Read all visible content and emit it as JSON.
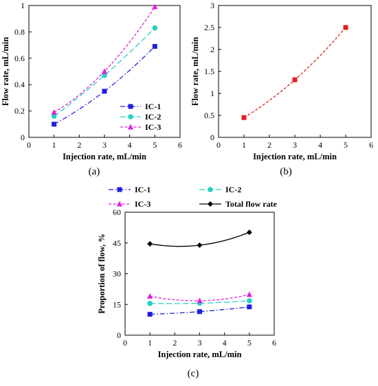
{
  "chart_data": [
    {
      "type": "line",
      "panel_label": "(a)",
      "xlabel": "Injection rate, mL/min",
      "ylabel": "Flow rate, mL/min",
      "xlim": [
        0,
        6
      ],
      "ylim": [
        0,
        1
      ],
      "xticks": [
        "0",
        "1",
        "2",
        "3",
        "4",
        "5",
        "6"
      ],
      "yticks": [
        "0",
        "0.2",
        "0.4",
        "0.6",
        "0.8",
        "1"
      ],
      "x": [
        1,
        3,
        5
      ],
      "legend_position": "bottom-right",
      "series": [
        {
          "name": "IC-1",
          "values": [
            0.1,
            0.35,
            0.69
          ],
          "color": "#1f1fe0",
          "marker": "square",
          "dash": "dashdot"
        },
        {
          "name": "IC-2",
          "values": [
            0.16,
            0.47,
            0.83
          ],
          "color": "#22d3c0",
          "marker": "circle",
          "dash": "longdash"
        },
        {
          "name": "IC-3",
          "values": [
            0.19,
            0.5,
            0.99
          ],
          "color": "#e020e0",
          "marker": "triangle",
          "dash": "shortdash"
        }
      ]
    },
    {
      "type": "line",
      "panel_label": "(b)",
      "xlabel": "Injection rate, mL/min",
      "ylabel": "Flow rate, mL/min",
      "xlim": [
        0,
        6
      ],
      "ylim": [
        0,
        3
      ],
      "xticks": [
        "0",
        "1",
        "2",
        "3",
        "4",
        "5",
        "6"
      ],
      "yticks": [
        "0",
        "0.5",
        "1",
        "1.5",
        "2",
        "2.5",
        "3"
      ],
      "x": [
        1,
        3,
        5
      ],
      "series": [
        {
          "name": "",
          "values": [
            0.45,
            1.31,
            2.5
          ],
          "color": "#e02020",
          "marker": "square",
          "dash": "shortdash"
        }
      ]
    },
    {
      "type": "line",
      "panel_label": "(c)",
      "xlabel": "Injection rate, mL/min",
      "ylabel": "Proportion of flow, %",
      "xlim": [
        0,
        6
      ],
      "ylim": [
        0,
        60
      ],
      "xticks": [
        "0",
        "1",
        "2",
        "3",
        "4",
        "5",
        "6"
      ],
      "yticks": [
        "0",
        "15",
        "30",
        "45",
        "60"
      ],
      "x": [
        1,
        3,
        5
      ],
      "legend_position": "top",
      "series": [
        {
          "name": "IC-1",
          "values": [
            10.2,
            11.5,
            13.8
          ],
          "color": "#1f1fe0",
          "marker": "square",
          "dash": "dashdot"
        },
        {
          "name": "IC-2",
          "values": [
            15.5,
            15.6,
            16.8
          ],
          "color": "#22d3c0",
          "marker": "circle",
          "dash": "longdash"
        },
        {
          "name": "IC-3",
          "values": [
            19.0,
            16.8,
            19.8
          ],
          "color": "#e020e0",
          "marker": "triangle",
          "dash": "shortdash"
        },
        {
          "name": "Total flow rate",
          "values": [
            44.6,
            43.9,
            50.2
          ],
          "color": "#000000",
          "marker": "diamond",
          "dash": "solid"
        }
      ]
    }
  ]
}
